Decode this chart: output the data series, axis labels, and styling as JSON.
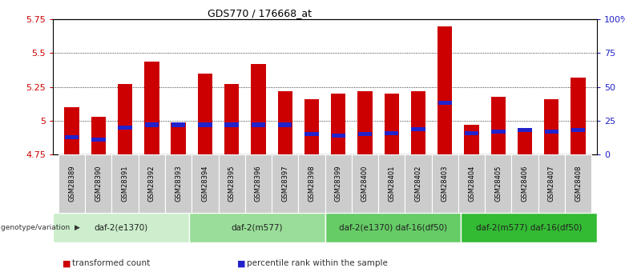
{
  "title": "GDS770 / 176668_at",
  "samples": [
    "GSM28389",
    "GSM28390",
    "GSM28391",
    "GSM28392",
    "GSM28393",
    "GSM28394",
    "GSM28395",
    "GSM28396",
    "GSM28397",
    "GSM28398",
    "GSM28399",
    "GSM28400",
    "GSM28401",
    "GSM28402",
    "GSM28403",
    "GSM28404",
    "GSM28405",
    "GSM28406",
    "GSM28407",
    "GSM28408"
  ],
  "transformed_count": [
    5.1,
    5.03,
    5.27,
    5.44,
    4.99,
    5.35,
    5.27,
    5.42,
    5.22,
    5.16,
    5.2,
    5.22,
    5.2,
    5.22,
    5.7,
    4.97,
    5.18,
    4.93,
    5.16,
    5.32
  ],
  "percentile_rank": [
    13,
    11,
    20,
    22,
    22,
    22,
    22,
    22,
    22,
    15,
    14,
    15,
    16,
    19,
    38,
    16,
    17,
    18,
    17,
    18
  ],
  "bar_color": "#cc0000",
  "blue_color": "#2222cc",
  "ymin": 4.75,
  "ymax": 5.75,
  "ytick_vals": [
    4.75,
    5.0,
    5.25,
    5.5,
    5.75
  ],
  "ytick_labels": [
    "4.75",
    "5",
    "5.25",
    "5.5",
    "5.75"
  ],
  "right_ytick_vals": [
    4.75,
    5.0,
    5.25,
    5.5,
    5.75
  ],
  "right_ytick_labels": [
    "0",
    "25",
    "50",
    "75",
    "100%"
  ],
  "groups": [
    {
      "label": "daf-2(e1370)",
      "start": 0,
      "end": 5,
      "color": "#cceecc"
    },
    {
      "label": "daf-2(m577)",
      "start": 5,
      "end": 10,
      "color": "#99dd99"
    },
    {
      "label": "daf-2(e1370) daf-16(df50)",
      "start": 10,
      "end": 15,
      "color": "#66cc66"
    },
    {
      "label": "daf-2(m577) daf-16(df50)",
      "start": 15,
      "end": 20,
      "color": "#33bb33"
    }
  ],
  "legend_items": [
    {
      "label": "transformed count",
      "color": "#cc0000"
    },
    {
      "label": "percentile rank within the sample",
      "color": "#2222cc"
    }
  ],
  "bg_color": "#ffffff",
  "tick_label_color": "#cc0000",
  "right_tick_color": "#2222cc",
  "bar_width": 0.55,
  "bar_bottom": 4.75,
  "blue_bar_height": 0.03,
  "gray_box_color": "#cccccc",
  "sample_label_fontsize": 6.0,
  "group_label_fontsize": 7.5,
  "legend_fontsize": 8.0
}
